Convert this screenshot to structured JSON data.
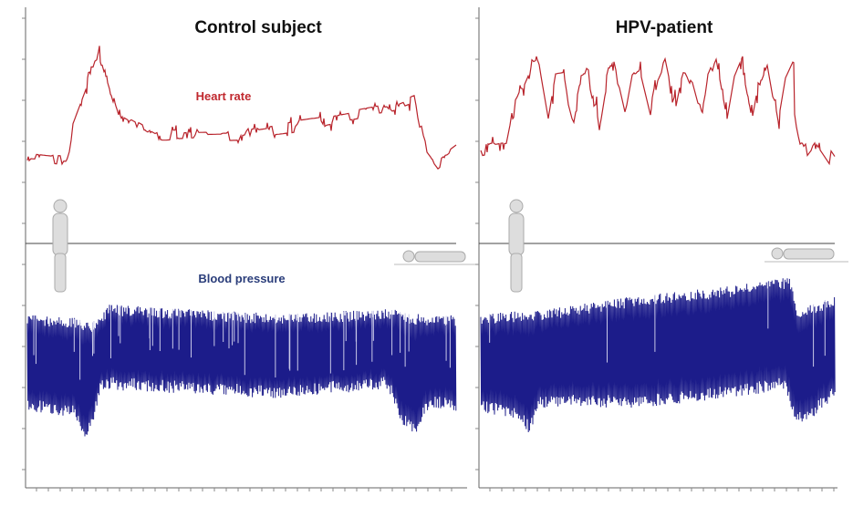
{
  "panels": [
    {
      "title": "Control subject",
      "heart_rate_label": "Heart rate",
      "blood_pressure_label": "Blood pressure"
    },
    {
      "title": "HPV-patient"
    }
  ]
}
